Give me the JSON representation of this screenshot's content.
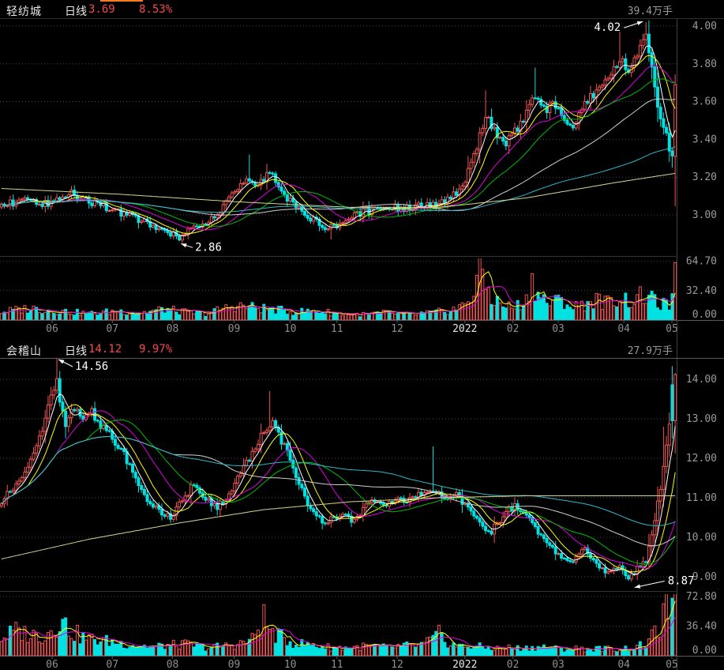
{
  "app": {
    "tab_indicator_color": "#ff7d1e",
    "colors": {
      "up": "#f25252",
      "down": "#00e2e2",
      "header_red": "#f24b4b",
      "axis_text": "#9a9a9a",
      "grid": "#4b4b4b",
      "month_text": "#8f8f8f",
      "month_highlight": "#e8e8e8",
      "annotation": "#ffffff",
      "ma250": "#d6d690",
      "vol_ma5": "#ffff00",
      "vol_ma10": "#dd00dd"
    }
  },
  "chart_data": [
    {
      "type": "candlestick",
      "header": {
        "name": "轻纺城",
        "period": "日线",
        "price": "3.69",
        "change": "8.53%",
        "volume_label": "39.4万手"
      },
      "y_ticks": [
        "4.00",
        "3.80",
        "3.60",
        "3.40",
        "3.20",
        "3.00"
      ],
      "y_tick_values": [
        4.0,
        3.8,
        3.6,
        3.4,
        3.2,
        3.0
      ],
      "volume_ticks": [
        "64.70",
        "32.40",
        "0.00"
      ],
      "volume_tick_values": [
        64.7,
        32.4,
        0.0
      ],
      "x_months": [
        {
          "label": "06",
          "highlight": false
        },
        {
          "label": "07",
          "highlight": false
        },
        {
          "label": "08",
          "highlight": false
        },
        {
          "label": "09",
          "highlight": false
        },
        {
          "label": "10",
          "highlight": false
        },
        {
          "label": "11",
          "highlight": false
        },
        {
          "label": "12",
          "highlight": false
        },
        {
          "label": "2022",
          "highlight": true
        },
        {
          "label": "02",
          "highlight": false
        },
        {
          "label": "03",
          "highlight": false
        },
        {
          "label": "04",
          "highlight": false
        },
        {
          "label": "05",
          "highlight": false
        }
      ],
      "n_days": 232,
      "ma_periods": [
        5,
        10,
        20,
        30,
        60,
        120
      ],
      "ma_colors": [
        "#ffffff",
        "#ffff00",
        "#dd00dd",
        "#00bb00",
        "#cfcfcf",
        "#2fb9c9"
      ],
      "close_keyframes": [
        [
          0,
          3.05
        ],
        [
          8,
          3.08
        ],
        [
          16,
          3.06
        ],
        [
          24,
          3.11
        ],
        [
          32,
          3.06
        ],
        [
          40,
          3.02
        ],
        [
          46,
          2.98
        ],
        [
          52,
          2.95
        ],
        [
          58,
          2.9
        ],
        [
          61,
          2.88
        ],
        [
          64,
          2.92
        ],
        [
          68,
          2.95
        ],
        [
          72,
          2.98
        ],
        [
          78,
          3.08
        ],
        [
          84,
          3.18
        ],
        [
          88,
          3.17
        ],
        [
          92,
          3.22
        ],
        [
          96,
          3.12
        ],
        [
          100,
          3.05
        ],
        [
          104,
          3.0
        ],
        [
          108,
          2.96
        ],
        [
          113,
          2.93
        ],
        [
          118,
          2.97
        ],
        [
          124,
          3.02
        ],
        [
          132,
          3.03
        ],
        [
          140,
          3.04
        ],
        [
          148,
          3.05
        ],
        [
          154,
          3.09
        ],
        [
          158,
          3.15
        ],
        [
          162,
          3.32
        ],
        [
          166,
          3.52
        ],
        [
          169,
          3.46
        ],
        [
          172,
          3.37
        ],
        [
          176,
          3.44
        ],
        [
          179,
          3.5
        ],
        [
          182,
          3.62
        ],
        [
          186,
          3.56
        ],
        [
          190,
          3.58
        ],
        [
          193,
          3.52
        ],
        [
          196,
          3.47
        ],
        [
          200,
          3.58
        ],
        [
          204,
          3.66
        ],
        [
          208,
          3.72
        ],
        [
          212,
          3.82
        ],
        [
          215,
          3.76
        ],
        [
          218,
          3.84
        ],
        [
          221,
          3.95
        ],
        [
          222,
          3.88
        ],
        [
          224,
          3.66
        ],
        [
          226,
          3.5
        ],
        [
          228,
          3.42
        ],
        [
          230,
          3.3
        ],
        [
          231,
          3.69
        ]
      ],
      "volume_keyframes": [
        [
          0,
          9
        ],
        [
          10,
          13
        ],
        [
          20,
          10
        ],
        [
          30,
          7
        ],
        [
          40,
          10
        ],
        [
          48,
          8
        ],
        [
          56,
          12
        ],
        [
          62,
          9
        ],
        [
          70,
          7
        ],
        [
          80,
          16
        ],
        [
          86,
          14
        ],
        [
          92,
          12
        ],
        [
          100,
          9
        ],
        [
          108,
          10
        ],
        [
          116,
          7
        ],
        [
          124,
          6
        ],
        [
          132,
          8
        ],
        [
          140,
          6
        ],
        [
          148,
          8
        ],
        [
          154,
          11
        ],
        [
          158,
          15
        ],
        [
          162,
          30
        ],
        [
          164,
          63
        ],
        [
          166,
          40
        ],
        [
          168,
          24
        ],
        [
          172,
          16
        ],
        [
          176,
          14
        ],
        [
          180,
          22
        ],
        [
          182,
          45
        ],
        [
          184,
          28
        ],
        [
          188,
          18
        ],
        [
          192,
          22
        ],
        [
          196,
          14
        ],
        [
          200,
          18
        ],
        [
          204,
          22
        ],
        [
          208,
          19
        ],
        [
          212,
          25
        ],
        [
          216,
          20
        ],
        [
          220,
          27
        ],
        [
          223,
          22
        ],
        [
          226,
          18
        ],
        [
          229,
          15
        ],
        [
          231,
          44
        ]
      ],
      "extremes": [
        {
          "i": 61,
          "l": 2.86
        },
        {
          "i": 85,
          "h": 3.32
        },
        {
          "i": 113,
          "l": 2.87
        },
        {
          "i": 166,
          "h": 3.66
        },
        {
          "i": 183,
          "h": 3.78
        },
        {
          "i": 212,
          "h": 3.97
        },
        {
          "i": 221,
          "h": 4.02
        },
        {
          "i": 230,
          "l": 3.25
        }
      ],
      "overrides": [
        {
          "i": 231,
          "o": 3.31,
          "c": 3.69
        }
      ],
      "ma250_keyframes": [
        [
          0,
          3.14
        ],
        [
          40,
          3.11
        ],
        [
          80,
          3.07
        ],
        [
          120,
          3.04
        ],
        [
          150,
          3.04
        ],
        [
          180,
          3.09
        ],
        [
          210,
          3.17
        ],
        [
          231,
          3.22
        ]
      ],
      "annotations": [
        {
          "text": "4.02",
          "day": 221,
          "price": 4.02,
          "placement": "peak-left"
        },
        {
          "text": "2.86",
          "day": 61,
          "price": 2.86,
          "placement": "low-right"
        }
      ]
    },
    {
      "type": "candlestick",
      "header": {
        "name": "会稽山",
        "period": "日线",
        "price": "14.12",
        "change": "9.97%",
        "volume_label": "27.9万手"
      },
      "y_ticks": [
        "14.00",
        "13.00",
        "12.00",
        "11.00",
        "10.00",
        "9.00"
      ],
      "y_tick_values": [
        14.0,
        13.0,
        12.0,
        11.0,
        10.0,
        9.0
      ],
      "volume_ticks": [
        "72.80",
        "36.40",
        "0.00"
      ],
      "volume_tick_values": [
        72.8,
        36.4,
        0.0
      ],
      "x_months": [
        {
          "label": "06",
          "highlight": false
        },
        {
          "label": "07",
          "highlight": false
        },
        {
          "label": "08",
          "highlight": false
        },
        {
          "label": "09",
          "highlight": false
        },
        {
          "label": "10",
          "highlight": false
        },
        {
          "label": "11",
          "highlight": false
        },
        {
          "label": "12",
          "highlight": false
        },
        {
          "label": "2022",
          "highlight": true
        },
        {
          "label": "02",
          "highlight": false
        },
        {
          "label": "03",
          "highlight": false
        },
        {
          "label": "04",
          "highlight": false
        },
        {
          "label": "05",
          "highlight": false
        }
      ],
      "n_days": 232,
      "ma_periods": [
        5,
        10,
        20,
        30,
        60,
        120
      ],
      "ma_colors": [
        "#ffffff",
        "#ffff00",
        "#dd00dd",
        "#00bb00",
        "#cfcfcf",
        "#2fb9c9"
      ],
      "close_keyframes": [
        [
          0,
          10.9
        ],
        [
          3,
          11.2
        ],
        [
          6,
          11.45
        ],
        [
          9,
          11.8
        ],
        [
          12,
          12.3
        ],
        [
          15,
          13.0
        ],
        [
          17,
          13.5
        ],
        [
          19,
          13.9
        ],
        [
          20,
          13.5
        ],
        [
          22,
          12.9
        ],
        [
          25,
          13.25
        ],
        [
          28,
          12.9
        ],
        [
          31,
          13.15
        ],
        [
          34,
          12.8
        ],
        [
          38,
          12.5
        ],
        [
          42,
          12.1
        ],
        [
          46,
          11.5
        ],
        [
          50,
          11.0
        ],
        [
          54,
          10.7
        ],
        [
          58,
          10.5
        ],
        [
          62,
          10.9
        ],
        [
          66,
          11.35
        ],
        [
          70,
          11.0
        ],
        [
          74,
          10.75
        ],
        [
          78,
          11.05
        ],
        [
          82,
          11.6
        ],
        [
          86,
          12.15
        ],
        [
          90,
          12.7
        ],
        [
          93,
          12.9
        ],
        [
          96,
          12.45
        ],
        [
          100,
          11.8
        ],
        [
          104,
          11.0
        ],
        [
          108,
          10.5
        ],
        [
          112,
          10.4
        ],
        [
          116,
          10.6
        ],
        [
          120,
          10.45
        ],
        [
          124,
          10.7
        ],
        [
          128,
          10.9
        ],
        [
          132,
          10.75
        ],
        [
          136,
          11.0
        ],
        [
          140,
          10.95
        ],
        [
          144,
          11.1
        ],
        [
          148,
          11.25
        ],
        [
          152,
          11.0
        ],
        [
          156,
          11.1
        ],
        [
          160,
          10.75
        ],
        [
          164,
          10.3
        ],
        [
          168,
          10.15
        ],
        [
          172,
          10.55
        ],
        [
          176,
          10.8
        ],
        [
          180,
          10.55
        ],
        [
          184,
          10.15
        ],
        [
          188,
          9.8
        ],
        [
          192,
          9.5
        ],
        [
          196,
          9.45
        ],
        [
          200,
          9.65
        ],
        [
          204,
          9.3
        ],
        [
          208,
          9.1
        ],
        [
          212,
          9.25
        ],
        [
          215,
          9.0
        ],
        [
          218,
          9.2
        ],
        [
          221,
          9.45
        ],
        [
          224,
          10.5
        ],
        [
          226,
          11.3
        ],
        [
          228,
          12.3
        ],
        [
          229,
          12.8
        ],
        [
          230,
          12.95
        ],
        [
          231,
          14.12
        ]
      ],
      "volume_keyframes": [
        [
          0,
          22
        ],
        [
          5,
          30
        ],
        [
          10,
          26
        ],
        [
          15,
          25
        ],
        [
          20,
          44
        ],
        [
          24,
          30
        ],
        [
          28,
          22
        ],
        [
          34,
          19
        ],
        [
          40,
          16
        ],
        [
          46,
          13
        ],
        [
          52,
          11
        ],
        [
          58,
          13
        ],
        [
          64,
          14
        ],
        [
          70,
          10
        ],
        [
          76,
          12
        ],
        [
          82,
          15
        ],
        [
          86,
          20
        ],
        [
          90,
          46
        ],
        [
          92,
          30
        ],
        [
          96,
          22
        ],
        [
          100,
          16
        ],
        [
          104,
          14
        ],
        [
          108,
          12
        ],
        [
          114,
          10
        ],
        [
          120,
          10
        ],
        [
          126,
          12
        ],
        [
          132,
          10
        ],
        [
          138,
          12
        ],
        [
          144,
          13
        ],
        [
          148,
          20
        ],
        [
          150,
          26
        ],
        [
          154,
          14
        ],
        [
          158,
          11
        ],
        [
          162,
          12
        ],
        [
          166,
          10
        ],
        [
          170,
          9
        ],
        [
          174,
          10
        ],
        [
          178,
          9
        ],
        [
          182,
          10
        ],
        [
          186,
          11
        ],
        [
          190,
          9
        ],
        [
          194,
          8
        ],
        [
          198,
          9
        ],
        [
          202,
          8
        ],
        [
          206,
          9
        ],
        [
          210,
          8
        ],
        [
          214,
          9
        ],
        [
          218,
          11
        ],
        [
          221,
          14
        ],
        [
          223,
          22
        ],
        [
          225,
          32
        ],
        [
          227,
          45
        ],
        [
          228,
          58
        ],
        [
          229,
          62
        ],
        [
          230,
          72
        ],
        [
          231,
          55
        ]
      ],
      "extremes": [
        {
          "i": 19,
          "h": 14.56
        },
        {
          "i": 92,
          "h": 13.7
        },
        {
          "i": 148,
          "h": 12.3
        },
        {
          "i": 216,
          "l": 8.87
        },
        {
          "i": 227,
          "h": 12.8
        },
        {
          "i": 231,
          "h": 14.16
        }
      ],
      "overrides": [
        {
          "i": 230,
          "o": 13.86,
          "c": 12.95
        },
        {
          "i": 231,
          "o": 12.95,
          "c": 14.12
        }
      ],
      "ma250_keyframes": [
        [
          0,
          9.45
        ],
        [
          30,
          9.95
        ],
        [
          60,
          10.35
        ],
        [
          90,
          10.7
        ],
        [
          120,
          10.9
        ],
        [
          150,
          11.0
        ],
        [
          180,
          11.05
        ],
        [
          231,
          11.05
        ]
      ],
      "annotations": [
        {
          "text": "14.56",
          "day": 19,
          "price": 14.56,
          "placement": "peak-right"
        },
        {
          "text": "8.87",
          "day": 216,
          "price": 8.87,
          "placement": "low-right-far"
        }
      ]
    }
  ]
}
